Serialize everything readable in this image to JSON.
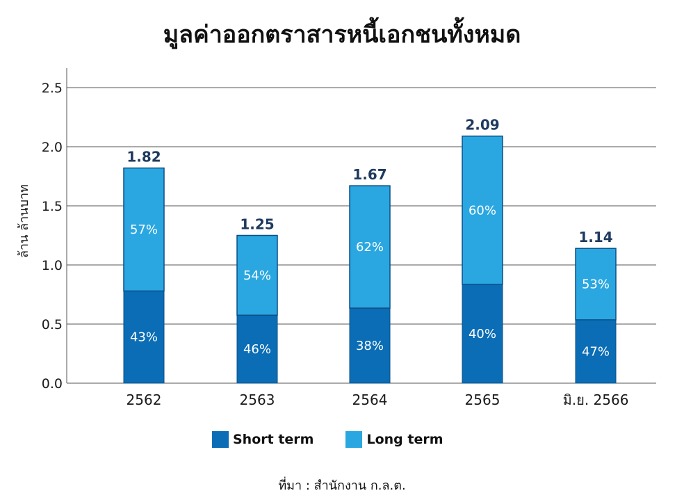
{
  "colors": {
    "short_term": "#0a6db5",
    "long_term": "#2aa7e1",
    "total_label": "#1e3a5f",
    "grid": "#555555"
  },
  "legend": {
    "short_label": "Short term",
    "long_label": "Long term"
  },
  "source": "ที่มา : สำนักงาน ก.ล.ต.",
  "chart_data": {
    "type": "bar",
    "stacked": true,
    "title": "มูลค่าออกตราสารหนี้เอกชนทั้งหมด",
    "xlabel": "",
    "ylabel": "ล้าน ล้านบาท",
    "ylim": [
      0,
      2.5
    ],
    "yticks": [
      "0.0",
      "0.5",
      "1.0",
      "1.5",
      "2.0",
      "2.5"
    ],
    "grid": "horizontal",
    "legend_position": "bottom",
    "categories": [
      "2562",
      "2563",
      "2564",
      "2565",
      "มิ.ย. 2566"
    ],
    "totals": [
      1.82,
      1.25,
      1.67,
      2.09,
      1.14
    ],
    "total_labels": [
      "1.82",
      "1.25",
      "1.67",
      "2.09",
      "1.14"
    ],
    "series": [
      {
        "name": "Short term",
        "percent_labels": [
          "43%",
          "46%",
          "38%",
          "40%",
          "47%"
        ],
        "values": [
          0.78,
          0.575,
          0.635,
          0.836,
          0.536
        ]
      },
      {
        "name": "Long term",
        "percent_labels": [
          "57%",
          "54%",
          "62%",
          "60%",
          "53%"
        ],
        "values": [
          1.04,
          0.675,
          1.035,
          1.254,
          0.604
        ]
      }
    ]
  }
}
